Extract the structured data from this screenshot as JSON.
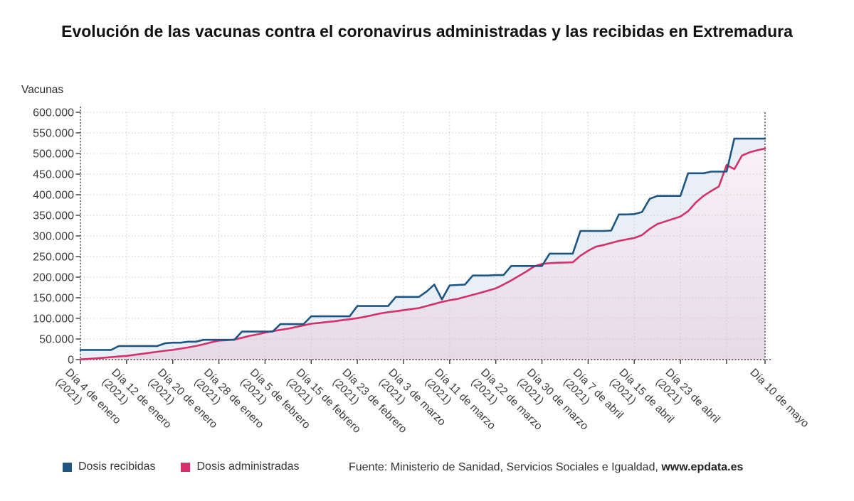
{
  "title": "Evolución de las vacunas contra el coronavirus administradas y las recibidas en Extremadura",
  "y_axis": {
    "label": "Vacunas",
    "ticks": [
      "0",
      "50.000",
      "100.000",
      "150.000",
      "200.000",
      "250.000",
      "300.000",
      "350.000",
      "400.000",
      "450.000",
      "500.000",
      "550.000",
      "600.000"
    ]
  },
  "legend": [
    {
      "label": "Dosis recibidas",
      "color": "#1d5583"
    },
    {
      "label": "Dosis administradas",
      "color": "#d5306a"
    }
  ],
  "source": {
    "text": "Fuente: Ministerio de Sanidad, Servicios Sociales e Igualdad, ",
    "link": "www.epdata.es"
  },
  "chart_data": {
    "type": "area",
    "title": "Evolución de las vacunas contra el coronavirus administradas y las recibidas en Extremadura",
    "ylabel": "Vacunas",
    "ylim": [
      0,
      600000
    ],
    "y_step": 50000,
    "grid": true,
    "legend_position": "bottom-left",
    "n_points": 90,
    "x_ticks": [
      {
        "index": 0,
        "label": "Día 4 de enero",
        "year": "(2021)"
      },
      {
        "index": 6,
        "label": "Día 12 de enero",
        "year": "(2021)"
      },
      {
        "index": 12,
        "label": "Día 20 de enero",
        "year": "(2021)"
      },
      {
        "index": 18,
        "label": "Día 28 de enero",
        "year": "(2021)"
      },
      {
        "index": 24,
        "label": "Día 5 de febrero",
        "year": "(2021)"
      },
      {
        "index": 30,
        "label": "Día 15 de febrero",
        "year": "(2021)"
      },
      {
        "index": 36,
        "label": "Día 23 de febrero",
        "year": "(2021)"
      },
      {
        "index": 42,
        "label": "Día 3 de marzo",
        "year": "(2021)"
      },
      {
        "index": 48,
        "label": "Día 11 de marzo",
        "year": "(2021)"
      },
      {
        "index": 54,
        "label": "Día 22 de marzo",
        "year": "(2021)"
      },
      {
        "index": 60,
        "label": "Día 30 de marzo",
        "year": "(2021)"
      },
      {
        "index": 66,
        "label": "Día 7 de abril",
        "year": "(2021)"
      },
      {
        "index": 72,
        "label": "Día 15 de abril",
        "year": "(2021)"
      },
      {
        "index": 78,
        "label": "Día 23 de abril",
        "year": "(2021)"
      },
      {
        "index": 89,
        "label": "Día 10 de mayo",
        "year": ""
      }
    ],
    "unlabeled_grid_indices": [
      6,
      12,
      18,
      24,
      30,
      36,
      42,
      48,
      54,
      60,
      66,
      72,
      78,
      84
    ],
    "series": [
      {
        "name": "Dosis recibidas",
        "color": "#1d5583",
        "fill": "#e9eff6",
        "values": [
          23500,
          23500,
          23500,
          23500,
          23500,
          33000,
          33000,
          33000,
          33000,
          33000,
          33000,
          39500,
          41000,
          41000,
          43500,
          43500,
          48000,
          48000,
          48000,
          48000,
          48000,
          68000,
          68000,
          68000,
          68000,
          68000,
          86000,
          86000,
          86000,
          86000,
          105000,
          105000,
          105000,
          105000,
          105000,
          105000,
          130000,
          130000,
          130000,
          130000,
          130000,
          152000,
          152000,
          152000,
          152000,
          165000,
          182000,
          146000,
          180000,
          181000,
          182000,
          204000,
          204000,
          204000,
          205000,
          205000,
          227000,
          227000,
          227000,
          227000,
          227000,
          257000,
          257000,
          257000,
          257000,
          312000,
          312000,
          312000,
          312000,
          313000,
          352000,
          352000,
          353000,
          358000,
          390000,
          397000,
          397000,
          397000,
          397000,
          452000,
          452000,
          452000,
          456000,
          456000,
          456000,
          536000,
          536000,
          536000,
          536000,
          536000
        ]
      },
      {
        "name": "Dosis administradas",
        "color": "#d5306a",
        "fill_top": "#f8f2f8",
        "fill_bottom": "#e6dae6",
        "values": [
          500,
          1500,
          3000,
          4500,
          6000,
          7500,
          9000,
          11500,
          14000,
          16500,
          19000,
          21500,
          23500,
          26500,
          29500,
          33000,
          37000,
          42000,
          46000,
          47000,
          48500,
          53000,
          57500,
          61000,
          65500,
          69000,
          72000,
          75000,
          79000,
          83000,
          87000,
          89000,
          91000,
          93000,
          95500,
          98000,
          100500,
          104000,
          108000,
          112000,
          115000,
          117500,
          120000,
          122500,
          125000,
          130000,
          135000,
          140000,
          144000,
          147000,
          152000,
          157000,
          162000,
          167500,
          173000,
          182000,
          192000,
          203000,
          214000,
          226000,
          232000,
          234000,
          235000,
          235500,
          236000,
          252000,
          264000,
          274000,
          278000,
          283000,
          288000,
          291500,
          295000,
          302000,
          317000,
          329000,
          335000,
          341000,
          347000,
          360000,
          381000,
          397000,
          409000,
          420000,
          472000,
          462000,
          495000,
          503000,
          508000,
          512000
        ]
      }
    ]
  },
  "plot_style": {
    "axis_color": "#3a3a3a",
    "grid_color": "#c9c9c9",
    "tick_label_color": "#3d3d3d"
  }
}
